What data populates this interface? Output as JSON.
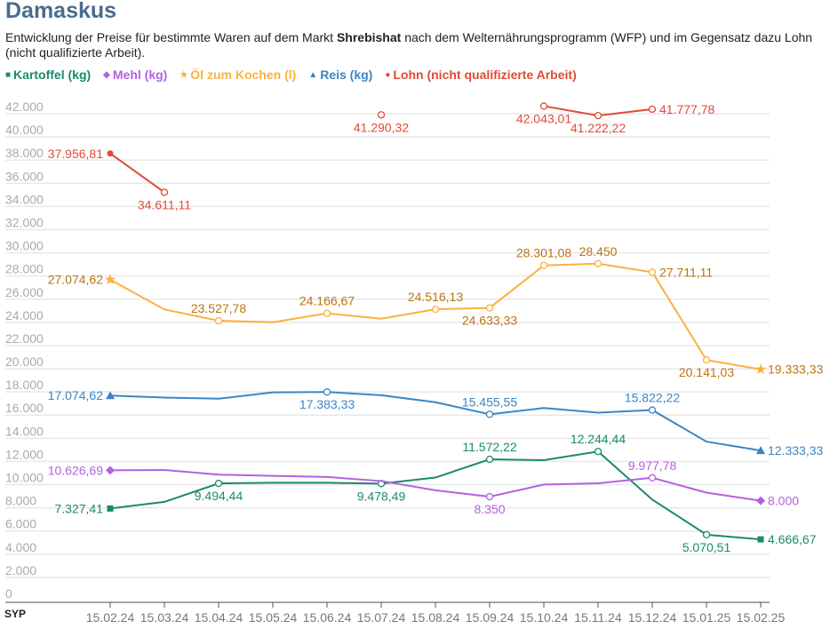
{
  "title": "Damaskus",
  "subtitle": {
    "pre": "Entwicklung der Preise für bestimmte Waren auf dem Markt ",
    "bold": "Shrebishat",
    "post": " nach dem Welternährungsprogramm (WFP) und im Gegensatz dazu Lohn (nicht qualifizierte Arbeit)."
  },
  "chart_data": {
    "type": "line",
    "ylabel": "SYP",
    "ylim": [
      0,
      42000
    ],
    "yticks": [
      0,
      2000,
      4000,
      6000,
      8000,
      10000,
      12000,
      14000,
      16000,
      18000,
      20000,
      22000,
      24000,
      26000,
      28000,
      30000,
      32000,
      34000,
      36000,
      38000,
      40000,
      42000
    ],
    "ytick_labels": [
      "0",
      "2.000",
      "4.000",
      "6.000",
      "8.000",
      "10.000",
      "12.000",
      "14.000",
      "16.000",
      "18.000",
      "20.000",
      "22.000",
      "24.000",
      "26.000",
      "28.000",
      "30.000",
      "32.000",
      "34.000",
      "36.000",
      "38.000",
      "40.000",
      "42.000"
    ],
    "grid": true,
    "legend_placement": "top-left",
    "categories": [
      "15.02.24",
      "15.03.24",
      "15.04.24",
      "15.05.24",
      "15.06.24",
      "15.07.24",
      "15.08.24",
      "15.09.24",
      "15.10.24",
      "15.11.24",
      "15.12.24",
      "15.01.25",
      "15.02.25"
    ],
    "series": [
      {
        "name": "Kartoffel (kg)",
        "color": "#1a8a6e",
        "marker": "square",
        "values": [
          7327.41,
          7900,
          9494.44,
          9550,
          9550,
          9478.49,
          10000,
          11572.22,
          11500,
          12244.44,
          8100,
          5070.51,
          4666.67
        ],
        "labels": {
          "0": "7.327,41",
          "2": "9.494,44",
          "5": "9.478,49",
          "7": "11.572,22",
          "9": "12.244,44",
          "11": "5.070,51",
          "12": "4.666,67"
        },
        "label_pos": {
          "0": "left",
          "2": "below",
          "5": "below",
          "7": "above",
          "9": "above",
          "11": "below",
          "12": "right"
        }
      },
      {
        "name": "Mehl (kg)",
        "color": "#b560e0",
        "marker": "diamond",
        "values": [
          10626.69,
          10650,
          10250,
          10150,
          10050,
          9700,
          8900,
          8350,
          9400,
          9500,
          9977.78,
          8700,
          8000
        ],
        "labels": {
          "0": "10.626,69",
          "7": "8.350",
          "10": "9.977,78",
          "12": "8.000"
        },
        "label_pos": {
          "0": "left",
          "7": "below",
          "10": "above",
          "12": "right"
        }
      },
      {
        "name": "Öl zum Kochen (l)",
        "color": "#fbb040",
        "label_color": "#b8760f",
        "marker": "star",
        "values": [
          27074.62,
          24500,
          23527.78,
          23400,
          24166.67,
          23700,
          24516.13,
          24633.33,
          28301.08,
          28450,
          27711.11,
          20141.03,
          19333.33
        ],
        "labels": {
          "0": "27.074,62",
          "2": "23.527,78",
          "4": "24.166,67",
          "6": "24.516,13",
          "7": "24.633,33",
          "8": "28.301,08",
          "9": "28.450",
          "10": "27.711,11",
          "11": "20.141,03",
          "12": "19.333,33"
        },
        "label_pos": {
          "0": "left",
          "2": "above",
          "4": "above",
          "6": "above",
          "7": "below",
          "8": "above",
          "9": "above",
          "10": "right",
          "11": "below",
          "12": "right"
        }
      },
      {
        "name": "Reis (kg)",
        "color": "#3a85c4",
        "marker": "triangle",
        "values": [
          17074.62,
          16900,
          16800,
          17350,
          17383.33,
          17100,
          16500,
          15455.55,
          16000,
          15600,
          15822.22,
          13100,
          12333.33
        ],
        "labels": {
          "0": "17.074,62",
          "4": "17.383,33",
          "7": "15.455,55",
          "10": "15.822,22",
          "12": "12.333,33"
        },
        "label_pos": {
          "0": "left",
          "4": "below",
          "7": "above",
          "10": "above",
          "12": "right"
        }
      },
      {
        "name": "Lohn (nicht qualifizierte Arbeit)",
        "color": "#e04b35",
        "marker": "circle",
        "values": [
          37956.81,
          34611.11,
          null,
          null,
          null,
          41290.32,
          null,
          null,
          42043.01,
          41222.22,
          41777.78,
          null,
          null
        ],
        "labels": {
          "0": "37.956,81",
          "1": "34.611,11",
          "5": "41.290,32",
          "8": "42.043,01",
          "9": "41.222,22",
          "10": "41.777,78"
        },
        "label_pos": {
          "0": "left",
          "1": "below",
          "5": "below",
          "8": "below",
          "9": "below",
          "10": "right"
        }
      }
    ]
  }
}
